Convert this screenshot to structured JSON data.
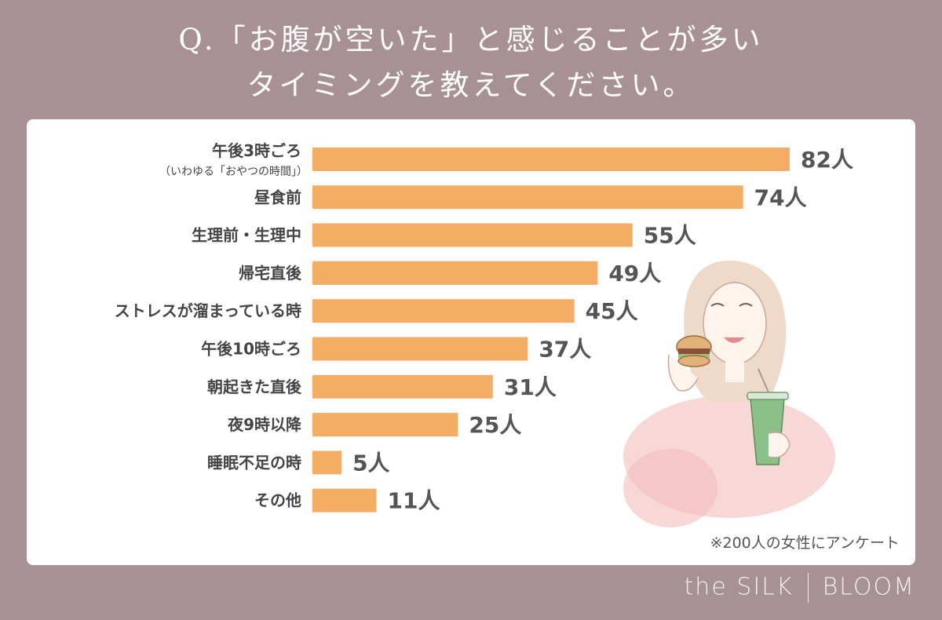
{
  "title": {
    "line1": "Q.「お腹が空いた」と感じることが多い",
    "line2": "タイミングを教えてください。"
  },
  "chart_data": {
    "type": "bar",
    "orientation": "horizontal",
    "unit_suffix": "人",
    "categories": [
      "午後3時ごろ",
      "昼食前",
      "生理前・生理中",
      "帰宅直後",
      "ストレスが溜まっている時",
      "午後10時ごろ",
      "朝起きた直後",
      "夜9時以降",
      "睡眠不足の時",
      "その他"
    ],
    "category_sublabels": [
      "（いわゆる「おやつの時間」）",
      "",
      "",
      "",
      "",
      "",
      "",
      "",
      "",
      ""
    ],
    "values": [
      82,
      74,
      55,
      49,
      45,
      37,
      31,
      25,
      5,
      11
    ],
    "value_labels": [
      "82人",
      "74人",
      "55人",
      "49人",
      "45人",
      "37人",
      "31人",
      "25人",
      "5人",
      "11人"
    ],
    "bar_color": "#f5ad66",
    "grid": false,
    "legend": "none"
  },
  "footnote": "※200人の女性にアンケート",
  "brand": {
    "left": "the SILK",
    "right": "BLOOM"
  },
  "illustration": "woman-eating-burger-illustration"
}
